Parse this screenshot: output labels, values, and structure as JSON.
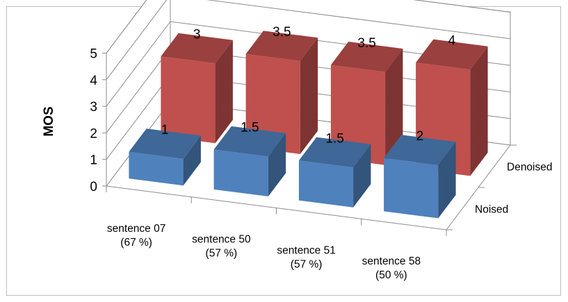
{
  "chart_data": {
    "type": "bar",
    "style": "3d-column",
    "ylabel": "MOS",
    "ylim": [
      0,
      5
    ],
    "yticks": [
      "0",
      "1",
      "2",
      "3",
      "4",
      "5"
    ],
    "categories": [
      [
        "sentence 07",
        "(67 %)"
      ],
      [
        "sentence 50",
        "(57 %)"
      ],
      [
        "sentence 51",
        "(57 %)"
      ],
      [
        "sentence 58",
        "(50 %)"
      ]
    ],
    "series": [
      {
        "name": "Noised",
        "values": [
          1,
          1.5,
          1.5,
          2
        ],
        "labels": [
          "1",
          "1.5",
          "1.5",
          "2"
        ],
        "color": "#4f81bd"
      },
      {
        "name": "Denoised",
        "values": [
          3,
          3.5,
          3.5,
          4
        ],
        "labels": [
          "3",
          "3.5",
          "3.5",
          "4"
        ],
        "color": "#c0504d"
      }
    ],
    "grid": true
  }
}
